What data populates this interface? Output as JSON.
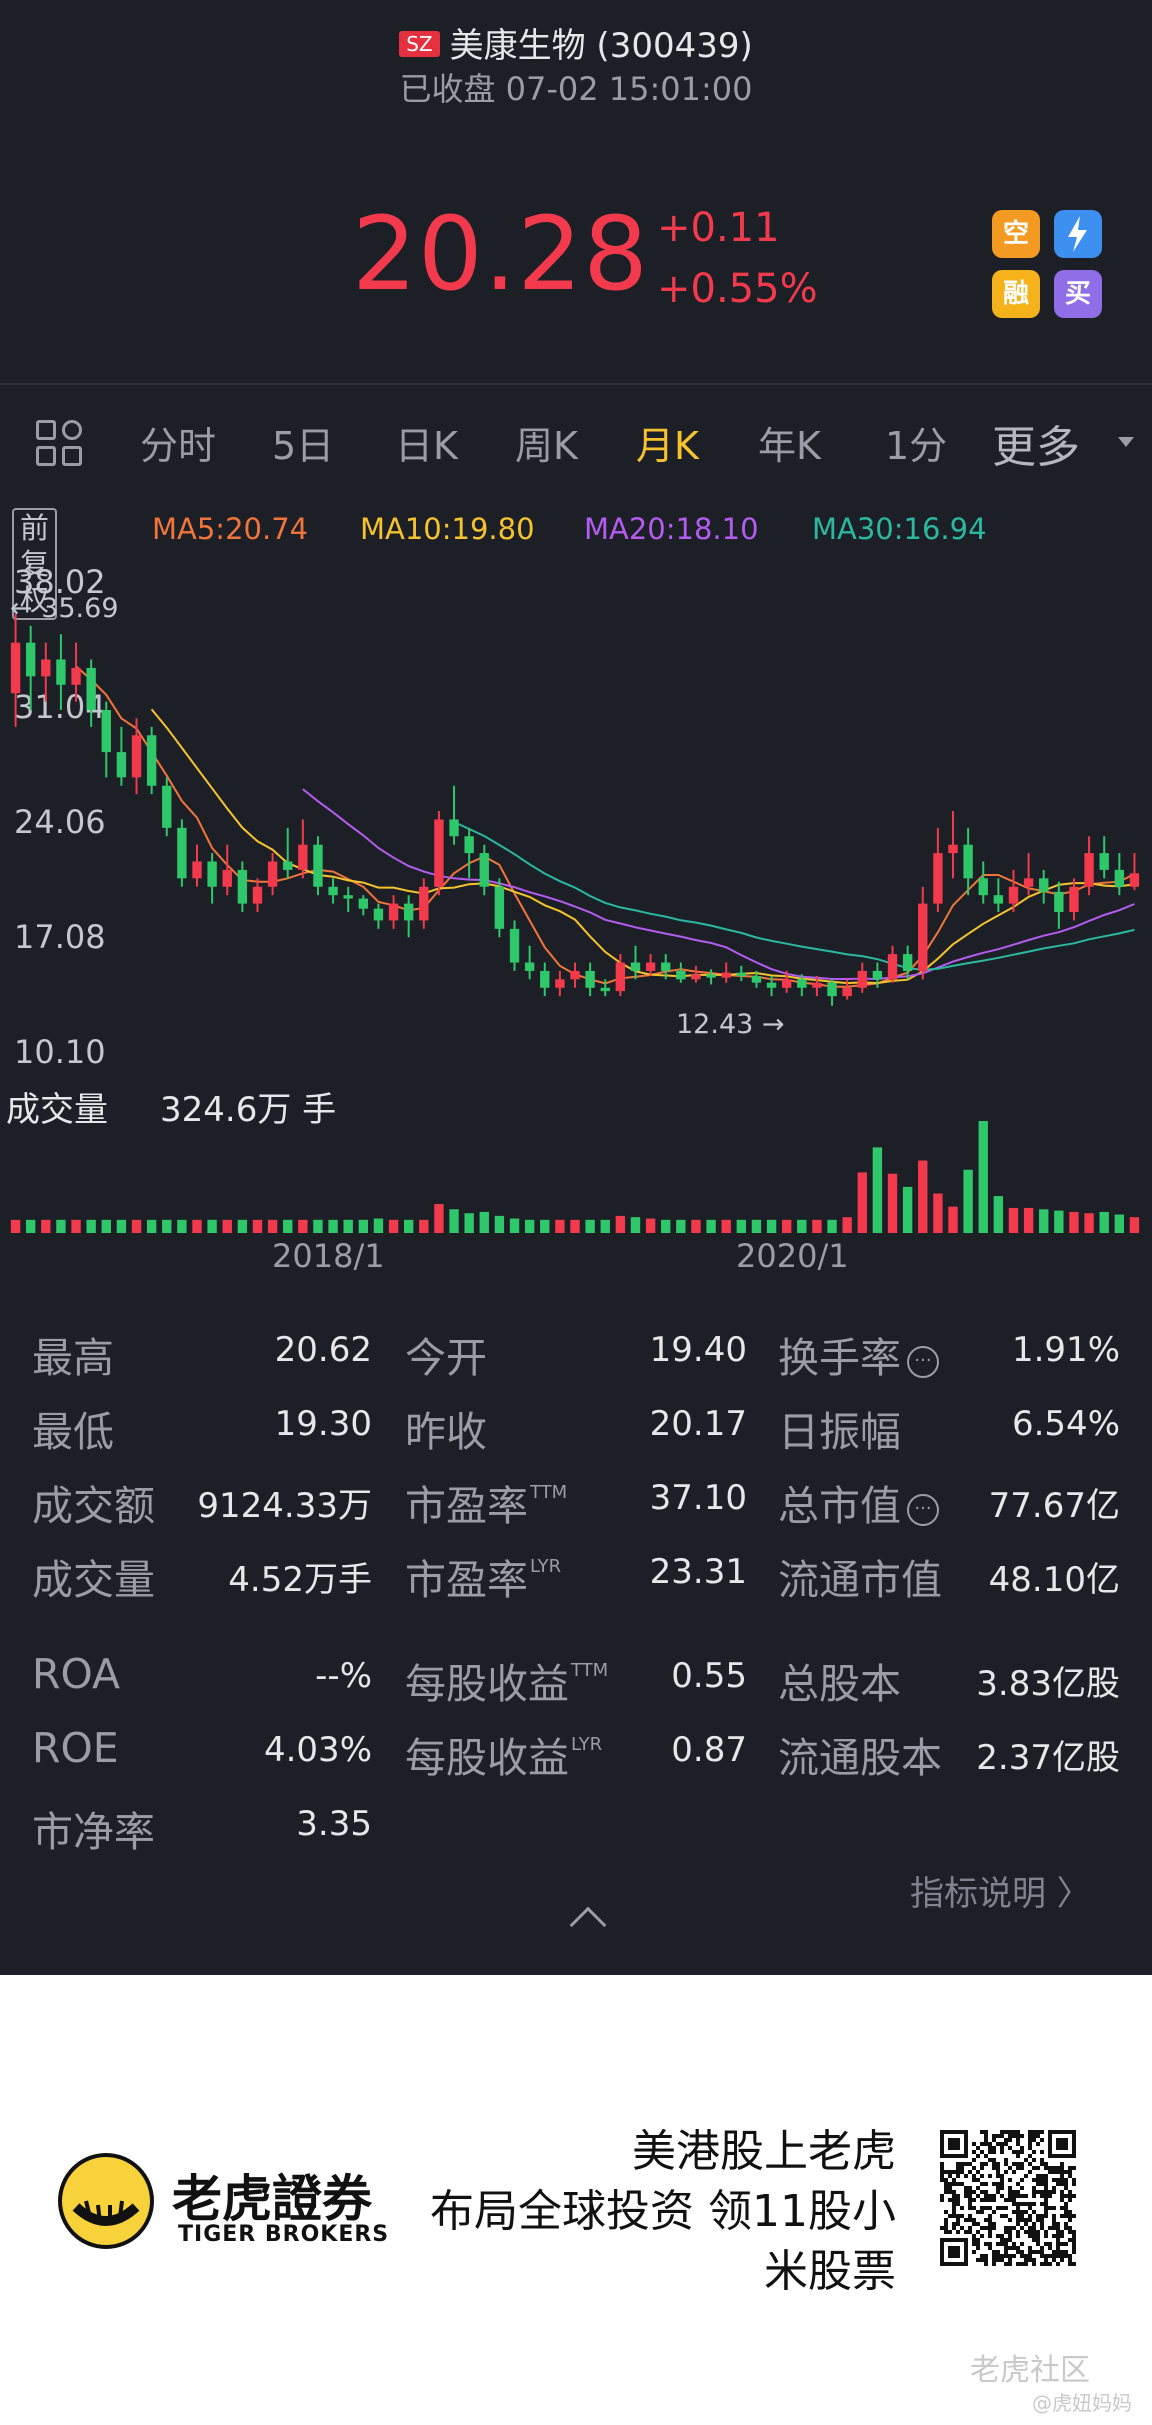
{
  "header": {
    "exchange_badge": "SZ",
    "stock_name": "美康生物 (300439)",
    "status": "已收盘 07-02 15:01:00",
    "price": "20.28",
    "change": "+0.11",
    "change_pct": "+0.55%",
    "badges": [
      {
        "icon": "short-sell-icon",
        "label": "空"
      },
      {
        "icon": "lightning-icon",
        "label": "1"
      },
      {
        "icon": "margin-icon",
        "label": "融"
      },
      {
        "icon": "buy-icon",
        "label": "买"
      }
    ],
    "colors": {
      "up": "#f23a4c",
      "down": "#2ec86a",
      "accent": "#f6c32f"
    }
  },
  "tabs": {
    "items": [
      "分时",
      "5日",
      "日K",
      "周K",
      "月K",
      "年K",
      "1分",
      "更多"
    ],
    "active": "月K"
  },
  "ma": {
    "adjust": "前复权",
    "ma5": "MA5:20.74",
    "ma10": "MA10:19.80",
    "ma20": "MA20:18.10",
    "ma30": "MA30:16.94",
    "colors": {
      "ma5": "#f0753a",
      "ma10": "#f6c32f",
      "ma20": "#b45cf0",
      "ma30": "#2ab8a0"
    }
  },
  "chart_data": {
    "type": "candlestick",
    "y_ticks": [
      "38.02",
      "31.04",
      "24.06",
      "17.08",
      "10.10"
    ],
    "ylim": [
      10.1,
      38.02
    ],
    "high_label": "35.69",
    "low_label": "12.43",
    "x_ticks": [
      "2018/1",
      "2020/1"
    ],
    "volume_label": "成交量",
    "volume_value": "324.6万 手",
    "candles": [
      [
        31,
        34,
        35.7,
        29
      ],
      [
        34,
        32,
        35,
        30
      ],
      [
        32,
        33,
        34,
        30.5
      ],
      [
        33,
        31.5,
        34.5,
        30
      ],
      [
        31.5,
        32.5,
        34,
        30.5
      ],
      [
        32.5,
        30,
        33,
        29
      ],
      [
        30,
        27.5,
        30.5,
        26
      ],
      [
        27.5,
        26,
        29,
        25.5
      ],
      [
        26,
        28.5,
        29.5,
        25
      ],
      [
        28.5,
        25.5,
        29,
        25
      ],
      [
        25.5,
        23,
        26,
        22.5
      ],
      [
        23,
        20,
        23.5,
        19.5
      ],
      [
        20,
        21,
        22,
        19.5
      ],
      [
        21,
        19.5,
        21.5,
        18.5
      ],
      [
        19.5,
        20.5,
        22,
        19
      ],
      [
        20.5,
        18.5,
        21,
        18
      ],
      [
        18.5,
        19.5,
        20,
        18
      ],
      [
        19.5,
        21,
        21.5,
        19
      ],
      [
        21,
        20.5,
        23,
        20
      ],
      [
        20.5,
        22,
        23.5,
        20
      ],
      [
        22,
        19.5,
        22.5,
        19
      ],
      [
        19.5,
        19,
        20,
        18.5
      ],
      [
        19,
        18.8,
        19.5,
        18
      ],
      [
        18.8,
        18.2,
        19,
        17.8
      ],
      [
        18.2,
        17.5,
        18.5,
        17
      ],
      [
        17.5,
        18.5,
        19,
        17
      ],
      [
        18.5,
        17.5,
        19,
        16.5
      ],
      [
        17.5,
        19.5,
        20,
        17
      ],
      [
        19.5,
        23.5,
        24,
        19
      ],
      [
        23.5,
        22.5,
        25.5,
        22
      ],
      [
        22.5,
        21.5,
        23,
        20
      ],
      [
        21.5,
        19.5,
        22,
        19
      ],
      [
        19.5,
        17,
        20,
        16.5
      ],
      [
        17,
        15,
        17.5,
        14.5
      ],
      [
        15,
        14.5,
        16,
        14
      ],
      [
        14.5,
        13.5,
        15,
        13
      ],
      [
        13.5,
        14,
        14.5,
        13
      ],
      [
        14,
        14.5,
        15,
        13.5
      ],
      [
        14.5,
        13.5,
        15,
        13
      ],
      [
        13.5,
        13.3,
        14,
        13
      ],
      [
        13.3,
        15,
        15.5,
        13
      ],
      [
        15,
        14.5,
        16,
        14
      ],
      [
        14.5,
        15,
        15.5,
        14.2
      ],
      [
        15,
        14.5,
        15.5,
        14
      ],
      [
        14.5,
        14,
        15,
        13.8
      ],
      [
        14,
        14.3,
        14.8,
        13.8
      ],
      [
        14.3,
        14.1,
        14.6,
        13.7
      ],
      [
        14.1,
        14.4,
        15,
        13.8
      ],
      [
        14.4,
        14.2,
        14.8,
        13.9
      ],
      [
        14.2,
        13.8,
        14.5,
        13.5
      ],
      [
        13.8,
        13.5,
        14.2,
        13
      ],
      [
        13.5,
        14,
        14.5,
        13.2
      ],
      [
        14,
        13.5,
        14.3,
        13
      ],
      [
        13.5,
        13.8,
        14.2,
        13
      ],
      [
        13.8,
        13,
        14,
        12.43
      ],
      [
        13,
        13.5,
        14,
        12.8
      ],
      [
        13.5,
        14.5,
        15,
        13.2
      ],
      [
        14.5,
        14,
        15,
        13.5
      ],
      [
        14,
        15.5,
        16,
        13.8
      ],
      [
        15.5,
        14.5,
        16,
        14
      ],
      [
        14.5,
        18.5,
        19.5,
        14
      ],
      [
        18.5,
        21.5,
        23,
        18
      ],
      [
        21.5,
        22,
        24,
        20
      ],
      [
        22,
        20,
        23,
        19
      ],
      [
        20,
        19,
        21,
        18.5
      ],
      [
        19,
        18.5,
        20,
        18
      ],
      [
        18.5,
        19.5,
        20.5,
        18
      ],
      [
        19.5,
        20,
        21.5,
        19
      ],
      [
        20,
        19.2,
        20.5,
        18.5
      ],
      [
        19.2,
        18,
        19.8,
        17
      ],
      [
        18,
        19.5,
        20,
        17.5
      ],
      [
        19.5,
        21.5,
        22.5,
        19
      ],
      [
        21.5,
        20.5,
        22.5,
        20
      ],
      [
        20.5,
        19.5,
        21.5,
        19
      ],
      [
        19.5,
        20.3,
        21.5,
        19.3
      ]
    ],
    "volume": [
      1,
      1,
      1,
      1,
      1,
      1,
      1,
      1,
      1,
      1,
      1,
      1,
      1,
      1,
      1,
      1,
      1,
      1,
      1,
      1,
      1,
      1,
      1,
      1,
      1.1,
      1,
      1,
      1,
      2.2,
      1.8,
      1.5,
      1.6,
      1.3,
      1.1,
      1,
      1,
      1,
      1,
      1,
      1,
      1.3,
      1.2,
      1.1,
      1,
      1,
      1,
      1,
      1,
      1,
      1,
      1,
      1,
      1,
      1,
      1,
      1.2,
      4.6,
      6.5,
      4.5,
      3.5,
      5.5,
      3.0,
      2.0,
      4.8,
      8.5,
      2.8,
      1.9,
      1.9,
      1.8,
      1.7,
      1.6,
      1.5,
      1.6,
      1.4,
      1.2
    ]
  },
  "stats": {
    "rows": [
      [
        [
          "最高",
          "20.62"
        ],
        [
          "今开",
          "19.40"
        ],
        [
          "换手率",
          "1.91%"
        ]
      ],
      [
        [
          "最低",
          "19.30"
        ],
        [
          "昨收",
          "20.17"
        ],
        [
          "日振幅",
          "6.54%"
        ]
      ],
      [
        [
          "成交额",
          "9124.33万"
        ],
        [
          "市盈率",
          "37.10"
        ],
        [
          "总市值",
          "77.67亿"
        ]
      ],
      [
        [
          "成交量",
          "4.52万手"
        ],
        [
          "市盈率",
          "23.31"
        ],
        [
          "流通市值",
          "48.10亿"
        ]
      ],
      [
        [
          "ROA",
          "--%"
        ],
        [
          "每股收益",
          "0.55"
        ],
        [
          "总股本",
          "3.83亿股"
        ]
      ],
      [
        [
          "ROE",
          "4.03%"
        ],
        [
          "每股收益",
          "0.87"
        ],
        [
          "流通股本",
          "2.37亿股"
        ]
      ],
      [
        [
          "市净率",
          "3.35"
        ]
      ]
    ],
    "sup_ttm": "TTM",
    "sup_lyr": "LYR",
    "explain": "指标说明 〉"
  },
  "promo": {
    "logo_cn": "老虎證券",
    "logo_en": "TIGER BROKERS",
    "line1": "美港股上老虎",
    "line2": "布局全球投资 领11股小",
    "line3": "米股票",
    "watermark": "老虎社区",
    "watermark2": "@虎妞妈妈"
  }
}
